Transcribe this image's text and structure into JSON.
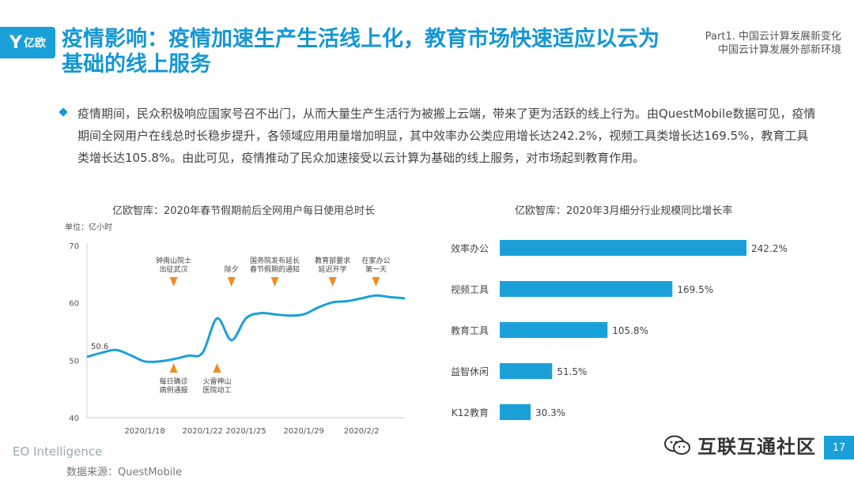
{
  "header": {
    "logo": "亿欧",
    "title": "疫情影响：疫情加速生产生活线上化，教育市场快速适应以云为基础的线上服务",
    "part_line1": "Part1. 中国云计算发展新变化",
    "part_line2": "中国云计算发展外部新环境"
  },
  "body": {
    "paragraph": "疫情期间，民众积极响应国家号召不出门，从而大量生产生活行为被搬上云端，带来了更为活跃的线上行为。由QuestMobile数据可见，疫情期间全网用户在线总时长稳步提升，各领域应用用量增加明显，其中效率办公类应用增长达242.2%，视频工具类增长达169.5%，教育工具类增长达105.8%。由此可见，疫情推动了民众加速接受以云计算为基础的线上服务，对市场起到教育作用。"
  },
  "colors": {
    "accent": "#1597d3",
    "line": "#1aa0d8",
    "marker": "#f08c1e"
  },
  "chart_data": [
    {
      "type": "line",
      "title": "亿欧智库：2020年春节假期前后全网用户每日使用总时长",
      "unit_label": "单位：亿小时",
      "ylim": [
        40,
        70
      ],
      "yticks": [
        40,
        50,
        60,
        70
      ],
      "xtick_labels": [
        "2020/1/18",
        "2020/1/22",
        "2020/1/25",
        "2020/1/29",
        "2020/2/2"
      ],
      "xtick_dates": [
        "2020-01-18",
        "2020-01-22",
        "2020-01-25",
        "2020-01-29",
        "2020-02-02"
      ],
      "x": [
        "2020-01-14",
        "2020-01-15",
        "2020-01-16",
        "2020-01-17",
        "2020-01-18",
        "2020-01-19",
        "2020-01-20",
        "2020-01-21",
        "2020-01-22",
        "2020-01-23",
        "2020-01-24",
        "2020-01-25",
        "2020-01-26",
        "2020-01-27",
        "2020-01-28",
        "2020-01-29",
        "2020-01-30",
        "2020-01-31",
        "2020-02-01",
        "2020-02-02",
        "2020-02-03",
        "2020-02-04",
        "2020-02-05"
      ],
      "y": [
        50.6,
        51.3,
        51.8,
        50.9,
        49.8,
        49.8,
        50.2,
        50.8,
        51.3,
        57.3,
        53.5,
        57.3,
        58.2,
        58.0,
        57.8,
        58.0,
        59.2,
        60.1,
        60.3,
        60.8,
        61.3,
        61.0,
        60.8
      ],
      "data_labels": [
        {
          "x": "2020-01-14",
          "text": "50.6"
        }
      ],
      "annotations": [
        {
          "x": "2020-01-20",
          "text": [
            "钟南山院士",
            "出征武汉"
          ],
          "side": "above"
        },
        {
          "x": "2020-01-20",
          "text": [
            "每日确诊",
            "病例通报"
          ],
          "side": "below"
        },
        {
          "x": "2020-01-23",
          "text": [
            "火雷神山",
            "医院动工"
          ],
          "side": "below"
        },
        {
          "x": "2020-01-24",
          "text": [
            "除夕"
          ],
          "side": "above"
        },
        {
          "x": "2020-01-27",
          "text": [
            "国务院发布延长",
            "春节假期的通知"
          ],
          "side": "above"
        },
        {
          "x": "2020-01-31",
          "text": [
            "教育部要求",
            "延迟开学"
          ],
          "side": "above"
        },
        {
          "x": "2020-02-03",
          "text": [
            "在家办公",
            "第一天"
          ],
          "side": "above"
        }
      ]
    },
    {
      "type": "bar",
      "orientation": "horizontal",
      "title": "亿欧智库：2020年3月细分行业规模同比增长率",
      "categories": [
        "效率办公",
        "视频工具",
        "教育工具",
        "益智休闲",
        "K12教育"
      ],
      "values": [
        242.2,
        169.5,
        105.8,
        51.5,
        30.3
      ],
      "value_labels": [
        "242.2%",
        "169.5%",
        "105.8%",
        "51.5%",
        "30.3%"
      ],
      "xlim": [
        0,
        250
      ]
    }
  ],
  "footer": {
    "brand": "EO Intelligence",
    "source": "数据来源：QuestMobile",
    "watermark": "互联互通社区",
    "page": "17"
  }
}
